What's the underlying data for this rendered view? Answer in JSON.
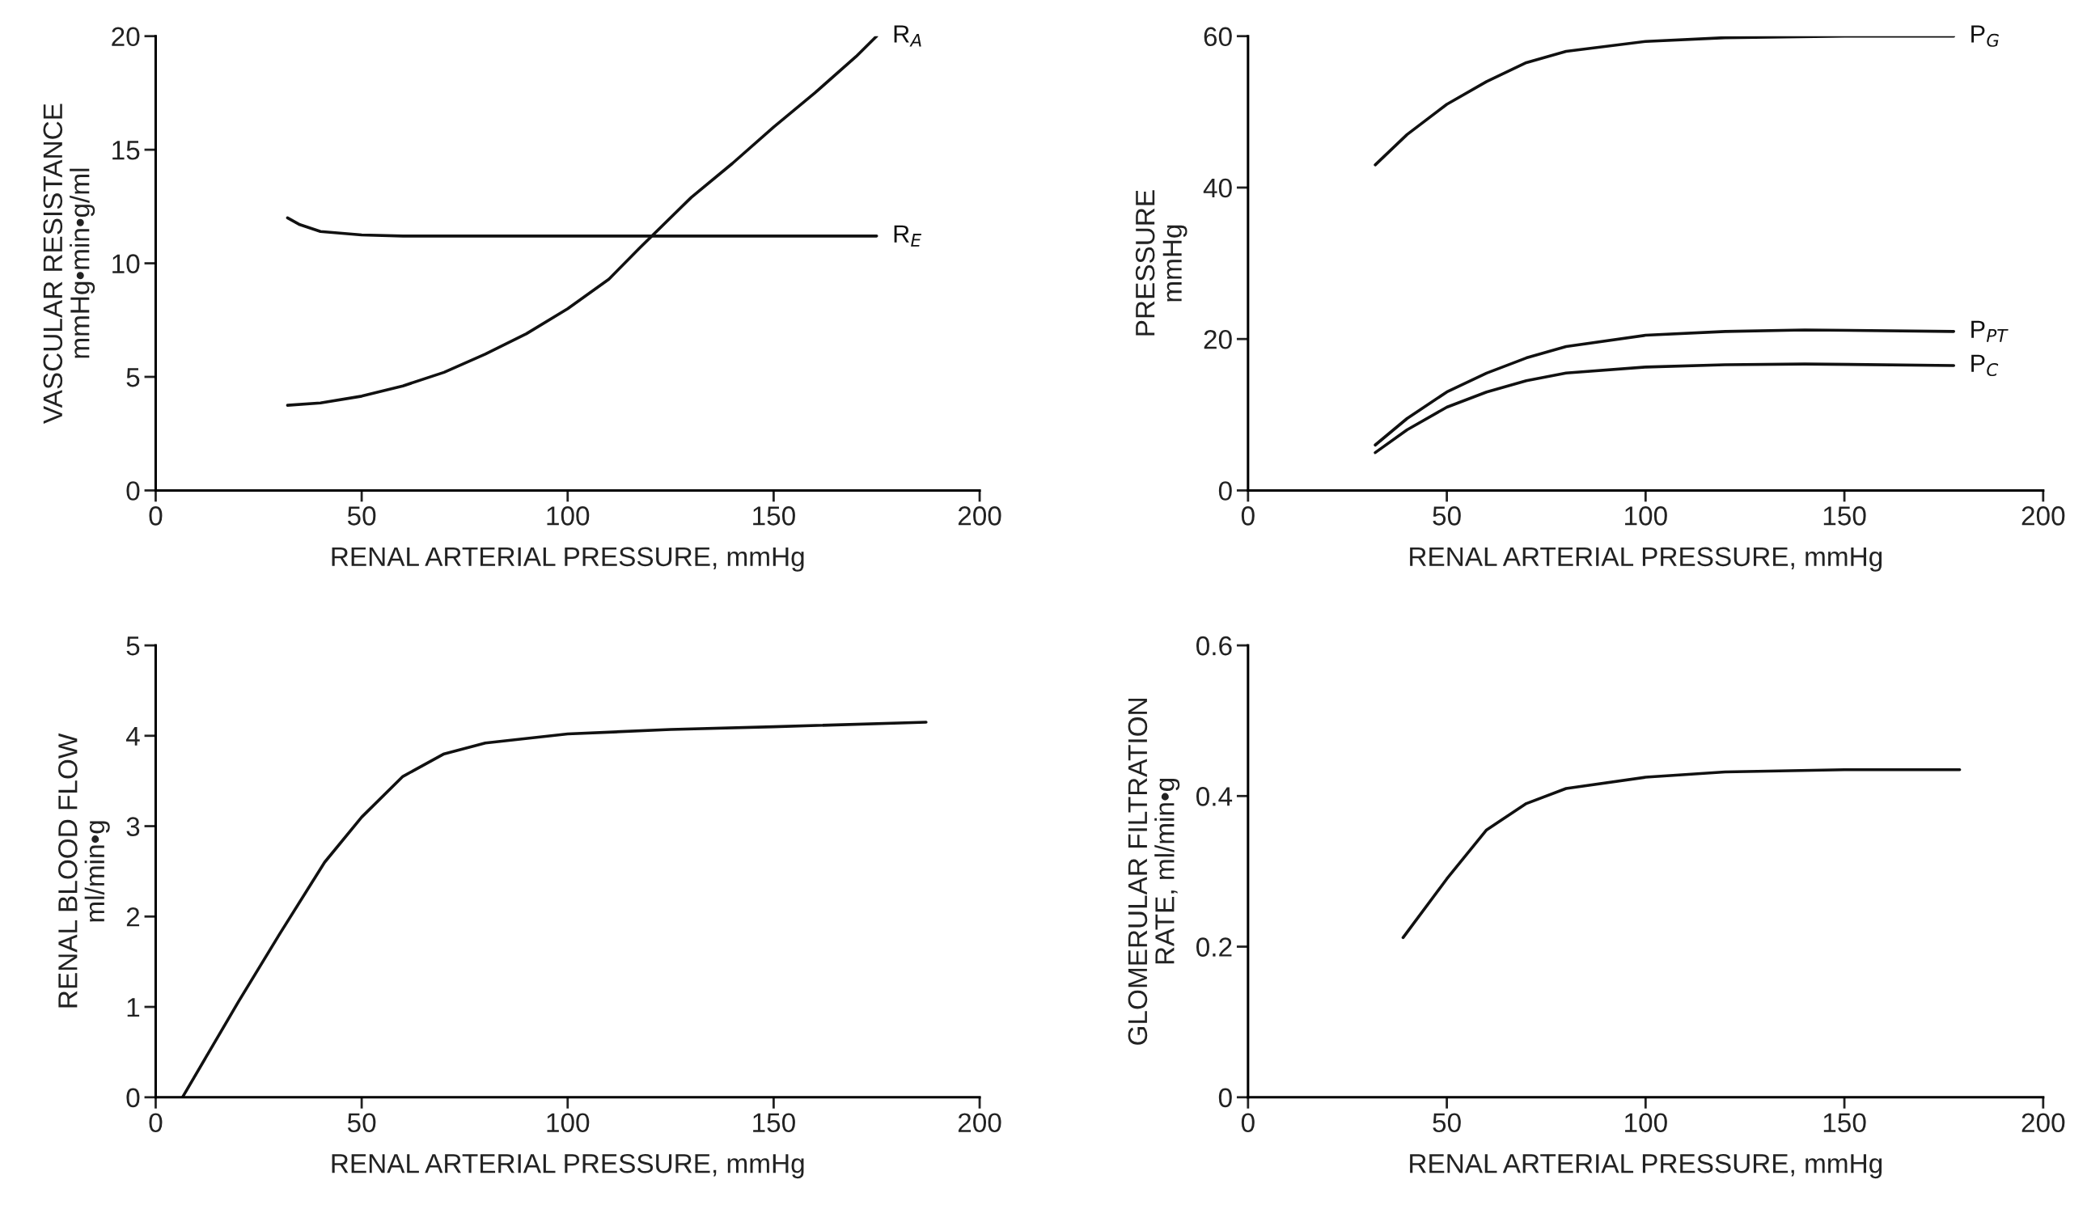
{
  "chart_data": [
    {
      "type": "line",
      "xlabel": "RENAL ARTERIAL PRESSURE, mmHg",
      "ylabel": "VASCULAR RESISTANCE\nmmHg•min•g/ml",
      "xlim": [
        0,
        200
      ],
      "xticks": [
        0,
        50,
        100,
        150,
        200
      ],
      "ylim": [
        0,
        20
      ],
      "yticks": [
        0,
        5,
        10,
        15,
        20
      ],
      "grid": false,
      "legend": false,
      "series": [
        {
          "name": "R$_{A}$",
          "color": "#111111",
          "x": [
            32,
            40,
            50,
            60,
            70,
            80,
            90,
            100,
            110,
            117.6,
            130,
            140,
            150,
            160,
            170,
            175
          ],
          "values": [
            3.75,
            3.85,
            4.15,
            4.6,
            5.2,
            6.0,
            6.9,
            8.0,
            9.3,
            10.7,
            12.9,
            14.4,
            16.0,
            17.5,
            19.1,
            20
          ]
        },
        {
          "name": "R$_{E}$",
          "color": "#111111",
          "x": [
            32,
            35,
            40,
            50,
            60,
            80,
            100,
            120,
            150,
            175
          ],
          "values": [
            12.0,
            11.7,
            11.4,
            11.25,
            11.2,
            11.2,
            11.2,
            11.2,
            11.2,
            11.2
          ]
        }
      ]
    },
    {
      "type": "line",
      "xlabel": "RENAL ARTERIAL PRESSURE, mmHg",
      "ylabel": "PRESSURE\nmmHg",
      "xlim": [
        0,
        200
      ],
      "xticks": [
        0,
        50,
        100,
        150,
        200
      ],
      "ylim": [
        0,
        60
      ],
      "yticks": [
        0,
        20,
        40,
        60
      ],
      "grid": false,
      "legend": false,
      "series": [
        {
          "name": "P$_{G}$",
          "color": "#111111",
          "x": [
            32,
            40,
            50,
            60,
            70,
            80,
            100,
            120,
            150,
            177.5
          ],
          "values": [
            43,
            47,
            51,
            54,
            56.5,
            58,
            59.3,
            59.8,
            60,
            60
          ]
        },
        {
          "name": "P$_{PT}$",
          "color": "#111111",
          "x": [
            32,
            40,
            50,
            60,
            70,
            80,
            100,
            120,
            140,
            177.5
          ],
          "values": [
            6,
            9.5,
            13,
            15.5,
            17.5,
            19,
            20.5,
            21,
            21.2,
            21
          ]
        },
        {
          "name": "P$_{C}$",
          "color": "#111111",
          "x": [
            32,
            40,
            50,
            60,
            70,
            80,
            100,
            120,
            140,
            177.5
          ],
          "values": [
            5,
            8,
            11,
            13,
            14.5,
            15.5,
            16.3,
            16.6,
            16.7,
            16.5
          ]
        }
      ]
    },
    {
      "type": "line",
      "xlabel": "RENAL ARTERIAL PRESSURE, mmHg",
      "ylabel": "RENAL BLOOD FLOW\nml/min•g",
      "xlim": [
        0,
        200
      ],
      "xticks": [
        0,
        50,
        100,
        150,
        200
      ],
      "ylim": [
        0,
        5
      ],
      "yticks": [
        0,
        1,
        2,
        3,
        4,
        5
      ],
      "grid": false,
      "legend": false,
      "series": [
        {
          "color": "#111111",
          "x": [
            6.5,
            20,
            30,
            41,
            50,
            60,
            70,
            80,
            100,
            125,
            150,
            187
          ],
          "values": [
            0,
            1.05,
            1.8,
            2.6,
            3.1,
            3.55,
            3.8,
            3.92,
            4.02,
            4.07,
            4.1,
            4.15
          ]
        }
      ]
    },
    {
      "type": "line",
      "xlabel": "RENAL ARTERIAL PRESSURE, mmHg",
      "ylabel": "GLOMERULAR FILTRATION\nRATE, ml/min•g",
      "xlim": [
        0,
        200
      ],
      "xticks": [
        0,
        50,
        100,
        150,
        200
      ],
      "ylim": [
        0,
        0.6
      ],
      "yticks": [
        0,
        0.2,
        0.4,
        0.6
      ],
      "grid": false,
      "legend": false,
      "series": [
        {
          "color": "#111111",
          "x": [
            39,
            50,
            60,
            70,
            80,
            100,
            120,
            150,
            179
          ],
          "values": [
            0.212,
            0.29,
            0.355,
            0.39,
            0.41,
            0.425,
            0.432,
            0.435,
            0.435
          ]
        }
      ]
    }
  ]
}
